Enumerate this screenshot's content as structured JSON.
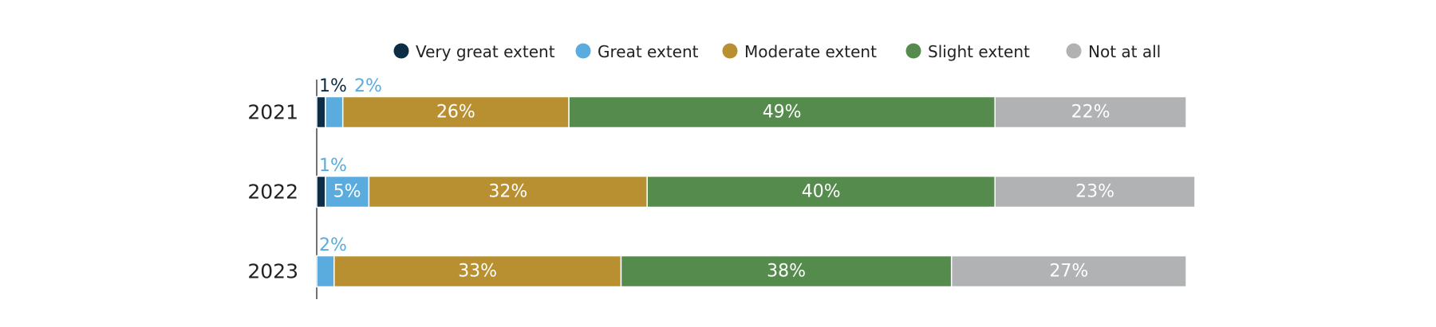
{
  "chart_data": {
    "type": "bar",
    "orientation": "horizontal",
    "stacked": true,
    "xlim": [
      0,
      100
    ],
    "legend_position": "top",
    "categories": [
      "2021",
      "2022",
      "2023"
    ],
    "series": [
      {
        "name": "Very great extent",
        "color": "#0c2d44",
        "values": [
          1,
          1,
          0
        ],
        "labels": [
          "1%",
          "",
          ""
        ]
      },
      {
        "name": "Great extent",
        "color": "#5aabde",
        "values": [
          2,
          5,
          2
        ],
        "labels": [
          "2%",
          "5%",
          "2%"
        ]
      },
      {
        "name": "Moderate extent",
        "color": "#b99031",
        "values": [
          26,
          32,
          33
        ],
        "labels": [
          "26%",
          "32%",
          "33%"
        ]
      },
      {
        "name": "Slight extent",
        "color": "#558b4c",
        "values": [
          49,
          40,
          38
        ],
        "labels": [
          "49%",
          "40%",
          "38%"
        ]
      },
      {
        "name": "Not at all",
        "color": "#b0b2b3",
        "values": [
          22,
          23,
          27
        ],
        "labels": [
          "22%",
          "23%",
          "27%"
        ]
      }
    ],
    "annotations": [
      {
        "category": "2022",
        "text": "1%",
        "color": "#5aabde"
      }
    ]
  }
}
